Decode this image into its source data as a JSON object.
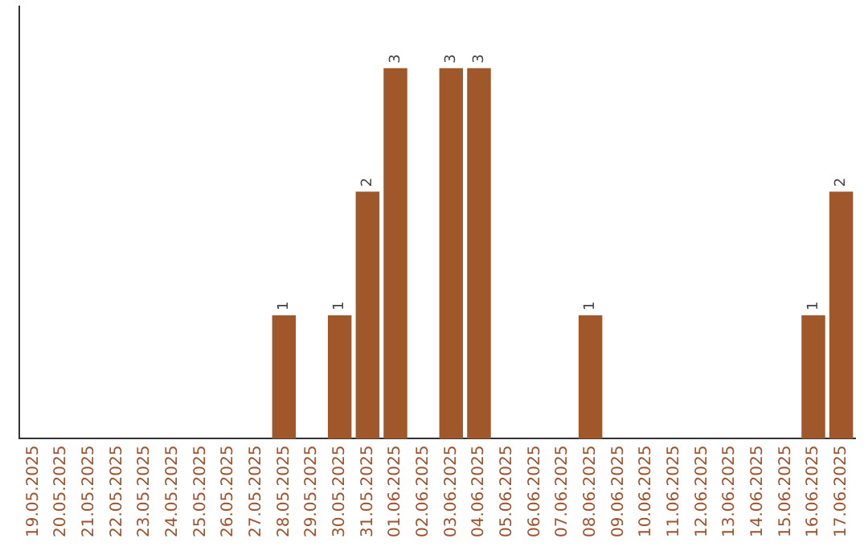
{
  "chart_data": {
    "type": "bar",
    "categories": [
      "19.05.2025",
      "20.05.2025",
      "21.05.2025",
      "22.05.2025",
      "23.05.2025",
      "24.05.2025",
      "25.05.2025",
      "26.05.2025",
      "27.05.2025",
      "28.05.2025",
      "29.05.2025",
      "30.05.2025",
      "31.05.2025",
      "01.06.2025",
      "02.06.2025",
      "03.06.2025",
      "04.06.2025",
      "05.06.2025",
      "06.06.2025",
      "07.06.2025",
      "08.06.2025",
      "09.06.2025",
      "10.06.2025",
      "11.06.2025",
      "12.06.2025",
      "13.06.2025",
      "14.06.2025",
      "15.06.2025",
      "16.06.2025",
      "17.06.2025"
    ],
    "values": [
      0,
      0,
      0,
      0,
      0,
      0,
      0,
      0,
      0,
      1,
      0,
      1,
      2,
      3,
      0,
      3,
      3,
      0,
      0,
      0,
      1,
      0,
      0,
      0,
      0,
      0,
      0,
      0,
      1,
      2
    ],
    "value_labels": [
      null,
      null,
      null,
      null,
      null,
      null,
      null,
      null,
      null,
      "1",
      null,
      "1",
      "2",
      "3",
      null,
      "3",
      "3",
      null,
      null,
      null,
      "1",
      null,
      null,
      null,
      null,
      null,
      null,
      null,
      "1",
      "2"
    ],
    "color": "#a0572a",
    "grid": false,
    "legend": false
  }
}
